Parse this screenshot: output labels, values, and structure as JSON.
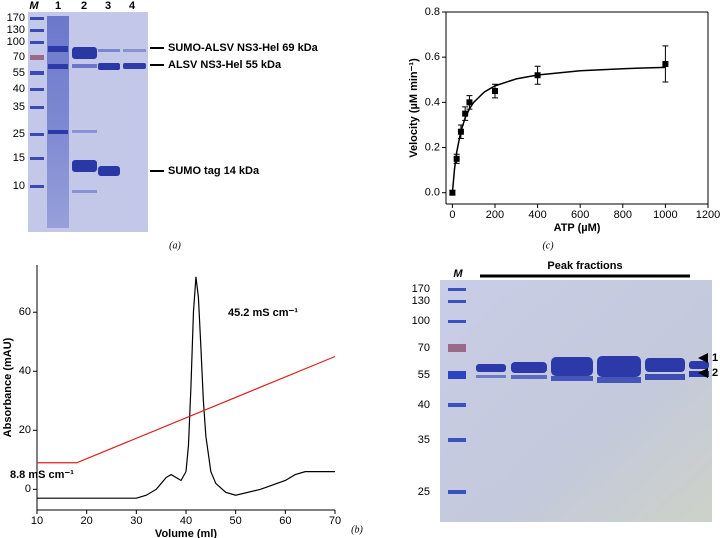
{
  "panel_labels": [
    "(a)",
    "(b)",
    "(c)"
  ],
  "gel_a": {
    "lanes": [
      "M",
      "1",
      "2",
      "3",
      "4"
    ],
    "markers": [
      "170",
      "130",
      "100",
      "70",
      "55",
      "40",
      "35",
      "25",
      "15",
      "10"
    ],
    "annotations": [
      "SUMO-ALSV NS3-Hel 69 kDa",
      "ALSV NS3-Hel 55 kDa",
      "SUMO tag 14 kDa"
    ]
  },
  "gel_b": {
    "marker_lane": "M",
    "header": "Peak fractions",
    "markers": [
      "170",
      "130",
      "100",
      "70",
      "55",
      "40",
      "35",
      "25"
    ],
    "bands": [
      "1",
      "2"
    ]
  },
  "chart_data": [
    {
      "type": "line",
      "x_label": "Volume (ml)",
      "y_label": "Absorbance (mAU)",
      "xlim": [
        10,
        70
      ],
      "ylim": [
        -7,
        76
      ],
      "xticks": [
        10,
        20,
        30,
        40,
        50,
        60,
        70
      ],
      "yticks": [
        0,
        20,
        40,
        60
      ],
      "series": [
        {
          "color": "#000000",
          "x": [
            10,
            15,
            20,
            25,
            30,
            32,
            34,
            35,
            36,
            37,
            38,
            39,
            40,
            40.5,
            41,
            41.5,
            42,
            42.5,
            43,
            43.5,
            44,
            45,
            46,
            48,
            50,
            55,
            60,
            62,
            64,
            66,
            68,
            70
          ],
          "values": [
            -3,
            -3,
            -3,
            -3,
            -3,
            -2,
            0,
            2,
            4,
            5,
            4,
            3,
            6,
            15,
            35,
            60,
            72,
            65,
            48,
            30,
            18,
            6,
            2,
            -1,
            -2,
            0,
            3,
            5,
            6,
            6,
            6,
            6
          ]
        },
        {
          "color": "#e02020",
          "x": [
            10,
            18,
            70
          ],
          "values": [
            9,
            9,
            45
          ]
        }
      ],
      "annotations": [
        "45.2 mS cm⁻¹",
        "8.8 mS cm⁻¹"
      ]
    },
    {
      "type": "scatter",
      "x_label": "ATP (µM)",
      "y_label": "Velocity (µM min⁻¹)",
      "xlim": [
        -30,
        1200
      ],
      "ylim": [
        -0.05,
        0.8
      ],
      "xticks": [
        0,
        200,
        400,
        600,
        800,
        1000,
        1200
      ],
      "yticks": [
        {
          "value": 0,
          "label": "0.0"
        },
        0.2,
        0.4,
        0.6,
        0.8
      ],
      "color": "#000000",
      "x": [
        0,
        20,
        40,
        60,
        80,
        200,
        400,
        1000
      ],
      "values": [
        0,
        0.15,
        0.27,
        0.35,
        0.4,
        0.45,
        0.52,
        0.57
      ],
      "errors": [
        0.01,
        0.02,
        0.03,
        0.03,
        0.03,
        0.03,
        0.04,
        0.08
      ],
      "fit": {
        "x": [
          0,
          10,
          20,
          40,
          60,
          80,
          100,
          150,
          200,
          300,
          400,
          600,
          800,
          1000
        ],
        "values": [
          0,
          0.105,
          0.178,
          0.273,
          0.331,
          0.371,
          0.4,
          0.446,
          0.473,
          0.504,
          0.521,
          0.54,
          0.549,
          0.555
        ]
      }
    }
  ]
}
